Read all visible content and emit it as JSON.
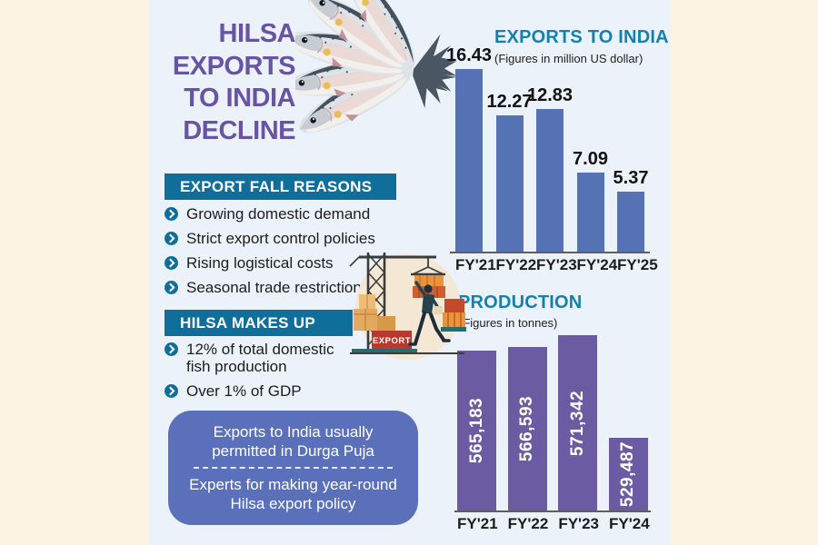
{
  "header": {
    "title_lines": [
      "HILSA",
      "EXPORTS",
      "TO INDIA",
      "DECLINE"
    ]
  },
  "reasons": {
    "header": "EXPORT FALL REASONS",
    "items": [
      "Growing domestic demand",
      "Strict export control policies",
      "Rising logistical costs",
      "Seasonal trade restrictions"
    ]
  },
  "makeup": {
    "header": "HILSA MAKES UP",
    "items": [
      "12% of total domestic fish production",
      "Over 1% of GDP"
    ]
  },
  "note_box": {
    "line1": "Exports to India usually permitted in Durga Puja",
    "line2": "Experts for making year-round Hilsa export policy"
  },
  "illustration": {
    "fish": "hilsa-fish-fan-photo",
    "port": "crane-loading-export-cargo",
    "export_box_label": "EXPORT"
  },
  "colors": {
    "background_cream": "#fcf2e2",
    "panel_blue": "#ebf2fa",
    "header_bar_teal": "#0f6f9a",
    "chart_title_teal": "#1580ac",
    "title_purple": "#6854a3",
    "bar_blue": "#5572b4",
    "bar_purple": "#6a5ba2",
    "note_box_blue": "#5b70ba",
    "text_dark": "#1d1d1b"
  },
  "chart_data": [
    {
      "id": "exports",
      "type": "bar",
      "title": "EXPORTS TO INDIA",
      "subtitle": "(Figures in million US dollar)",
      "categories": [
        "FY'21",
        "FY'22",
        "FY'23",
        "FY'24",
        "FY'25"
      ],
      "values": [
        16.43,
        12.27,
        12.83,
        7.09,
        5.37
      ],
      "value_labels": [
        "16.43",
        "12.27",
        "12.83",
        "7.09",
        "5.37"
      ],
      "xlabel": "",
      "ylabel": "",
      "ylim": [
        0,
        16.43
      ],
      "grid": false,
      "legend": false,
      "bar_color": "#5572b4",
      "label_position": "above"
    },
    {
      "id": "production",
      "type": "bar",
      "title": "PRODUCTION",
      "subtitle": "(Figures in tonnes)",
      "categories": [
        "FY'21",
        "FY'22",
        "FY'23",
        "FY'24"
      ],
      "values": [
        565183,
        566593,
        571342,
        529487
      ],
      "value_labels": [
        "565,183",
        "566,593",
        "571,342",
        "529,487"
      ],
      "xlabel": "",
      "ylabel": "",
      "ylim": [
        500000,
        571342
      ],
      "grid": false,
      "legend": false,
      "bar_color": "#6a5ba2",
      "label_position": "inside-vertical"
    }
  ]
}
